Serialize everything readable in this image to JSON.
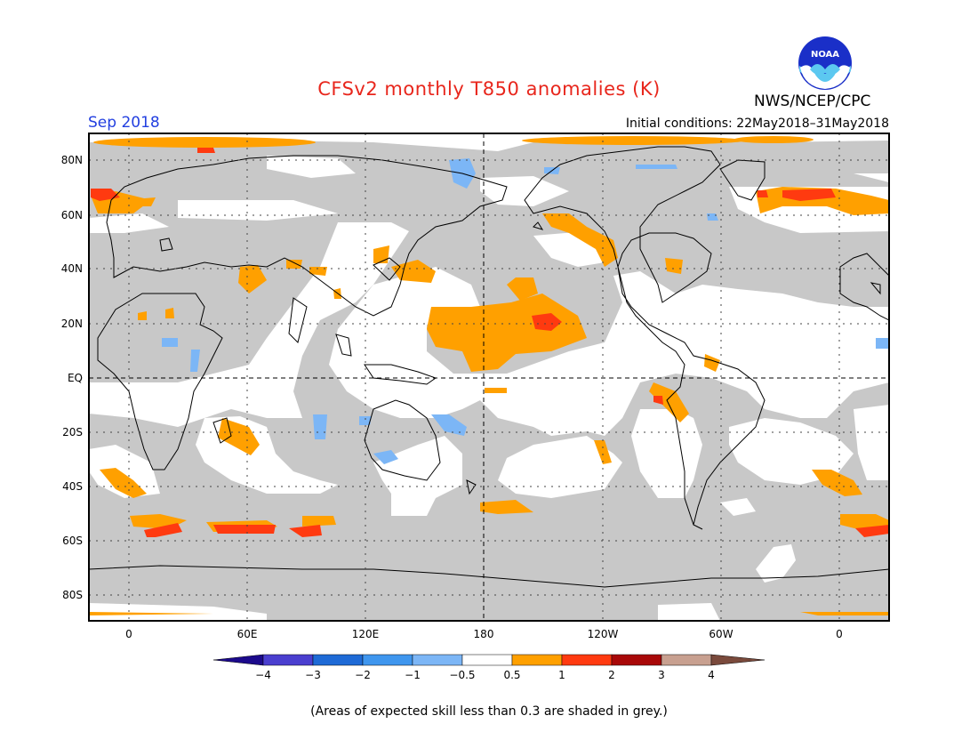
{
  "header": {
    "title": "CFSv2 monthly T850 anomalies (K)",
    "valid_month": "Sep 2018",
    "initial_conditions": "Initial conditions: 22May2018–31May2018",
    "agency": "NWS/NCEP/CPC",
    "logo_text": "NOAA"
  },
  "map": {
    "lat_labels": [
      "80N",
      "60N",
      "40N",
      "20N",
      "EQ",
      "20S",
      "40S",
      "60S",
      "80S"
    ],
    "lon_labels": [
      "0",
      "60E",
      "120E",
      "180",
      "120W",
      "60W",
      "0"
    ],
    "colors": {
      "skill_grey": "#c8c8c8",
      "ocean_white": "#ffffff"
    }
  },
  "colorbar": {
    "tick_labels": [
      "−4",
      "−3",
      "−2",
      "−1",
      "−0.5",
      "0.5",
      "1",
      "2",
      "3",
      "4"
    ],
    "colors": [
      "#1c0a8c",
      "#4a3fcf",
      "#1e6ad6",
      "#3f96ee",
      "#7cb6f6",
      "#ffffff",
      "#ffa000",
      "#ff3a10",
      "#a80808",
      "#c8a090",
      "#7a4a3c"
    ]
  },
  "footnote": "(Areas of expected skill less than 0.3 are shaded in grey.)"
}
